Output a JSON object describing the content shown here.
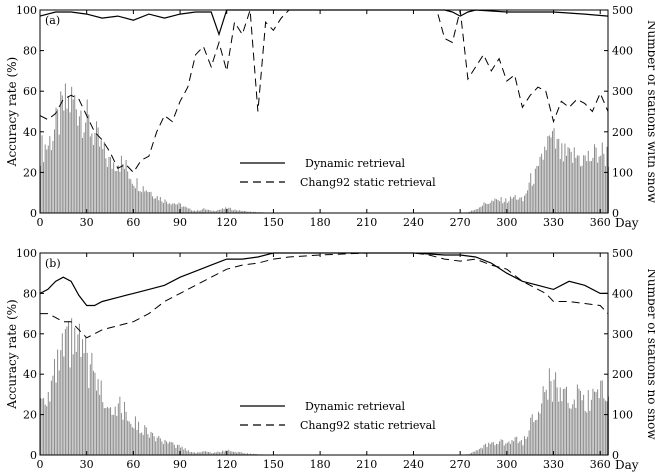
{
  "chart_data": [
    {
      "type": "line",
      "panel_label": "(a)",
      "xlabel": "Day",
      "ylabel": "Accuracy rate (%)",
      "y2label": "Number of stations with snow",
      "xlim": [
        0,
        365
      ],
      "ylim": [
        0,
        100
      ],
      "y2lim": [
        0,
        500
      ],
      "xticks": [
        0,
        30,
        60,
        90,
        120,
        150,
        180,
        210,
        240,
        270,
        300,
        330,
        360
      ],
      "yticks": [
        0,
        20,
        40,
        60,
        80,
        100
      ],
      "y2ticks": [
        0,
        100,
        200,
        300,
        400,
        500
      ],
      "legend_position": "center",
      "series": [
        {
          "name": "Dynamic retrieval",
          "style": "solid",
          "x": [
            0,
            10,
            20,
            30,
            40,
            50,
            60,
            70,
            80,
            90,
            100,
            110,
            115,
            120,
            130,
            140,
            150,
            160,
            170,
            180,
            210,
            240,
            260,
            265,
            270,
            275,
            280,
            300,
            330,
            350,
            365
          ],
          "y": [
            97,
            99,
            99,
            98,
            96,
            97,
            95,
            98,
            96,
            98,
            99,
            99,
            88,
            100,
            100,
            100,
            100,
            100,
            100,
            100,
            100,
            100,
            100,
            99,
            97,
            99,
            100,
            99,
            99,
            98,
            97
          ]
        },
        {
          "name": "Chang92 static retrieval",
          "style": "dashed",
          "x": [
            0,
            5,
            10,
            15,
            20,
            25,
            30,
            35,
            40,
            45,
            50,
            55,
            60,
            65,
            70,
            75,
            80,
            85,
            90,
            95,
            100,
            105,
            110,
            115,
            120,
            125,
            130,
            135,
            140,
            145,
            150,
            155,
            160,
            255,
            260,
            265,
            270,
            275,
            280,
            285,
            290,
            295,
            300,
            305,
            310,
            315,
            320,
            325,
            330,
            335,
            340,
            345,
            350,
            355,
            360,
            365
          ],
          "y": [
            48,
            46,
            49,
            56,
            58,
            56,
            48,
            40,
            36,
            30,
            22,
            24,
            20,
            26,
            28,
            40,
            48,
            45,
            55,
            62,
            78,
            82,
            72,
            84,
            70,
            94,
            88,
            100,
            50,
            94,
            90,
            96,
            100,
            100,
            86,
            84,
            100,
            66,
            72,
            78,
            70,
            76,
            65,
            68,
            52,
            58,
            62,
            60,
            45,
            55,
            52,
            56,
            54,
            50,
            59,
            50
          ]
        }
      ],
      "bars": {
        "name": "Number of stations with snow",
        "axis": "right",
        "x": [
          0,
          5,
          10,
          15,
          20,
          25,
          30,
          35,
          40,
          45,
          50,
          55,
          60,
          65,
          70,
          75,
          80,
          85,
          90,
          95,
          100,
          105,
          110,
          115,
          120,
          125,
          130,
          135,
          140,
          145,
          150,
          155,
          160,
          270,
          275,
          280,
          285,
          290,
          295,
          300,
          305,
          310,
          315,
          320,
          325,
          330,
          335,
          340,
          345,
          350,
          355,
          360,
          365
        ],
        "values": [
          155,
          170,
          210,
          260,
          275,
          260,
          225,
          190,
          150,
          120,
          130,
          110,
          80,
          65,
          55,
          40,
          30,
          25,
          20,
          10,
          5,
          10,
          5,
          8,
          12,
          8,
          5,
          3,
          2,
          1,
          0,
          0,
          0,
          0,
          2,
          10,
          22,
          28,
          32,
          30,
          40,
          30,
          80,
          100,
          170,
          175,
          140,
          135,
          140,
          130,
          140,
          150,
          140
        ]
      }
    },
    {
      "type": "line",
      "panel_label": "(b)",
      "xlabel": "Day",
      "ylabel": "Accuracy rate (%)",
      "y2label": "Number of stations no snow",
      "xlim": [
        0,
        365
      ],
      "ylim": [
        0,
        100
      ],
      "y2lim": [
        0,
        500
      ],
      "xticks": [
        0,
        30,
        60,
        90,
        120,
        150,
        180,
        210,
        240,
        270,
        300,
        330,
        360
      ],
      "yticks": [
        0,
        20,
        40,
        60,
        80,
        100
      ],
      "y2ticks": [
        0,
        100,
        200,
        300,
        400,
        500
      ],
      "legend_position": "center",
      "series": [
        {
          "name": "Dynamic retrieval",
          "style": "solid",
          "x": [
            0,
            5,
            10,
            15,
            20,
            25,
            30,
            35,
            40,
            50,
            60,
            70,
            80,
            90,
            100,
            110,
            120,
            130,
            140,
            150,
            160,
            180,
            210,
            240,
            260,
            270,
            280,
            290,
            300,
            310,
            320,
            330,
            340,
            350,
            360,
            365
          ],
          "y": [
            80,
            82,
            86,
            88,
            86,
            79,
            74,
            74,
            76,
            78,
            80,
            82,
            84,
            88,
            91,
            94,
            97,
            97,
            98,
            100,
            100,
            100,
            100,
            100,
            99,
            99,
            98,
            95,
            90,
            86,
            84,
            82,
            86,
            84,
            80,
            80
          ]
        },
        {
          "name": "Chang92 static retrieval",
          "style": "dashed",
          "x": [
            0,
            5,
            10,
            15,
            20,
            25,
            30,
            35,
            40,
            50,
            60,
            70,
            80,
            90,
            100,
            110,
            120,
            130,
            140,
            150,
            160,
            180,
            210,
            240,
            250,
            260,
            270,
            280,
            290,
            300,
            310,
            320,
            325,
            330,
            340,
            350,
            360,
            365
          ],
          "y": [
            70,
            70,
            68,
            66,
            66,
            62,
            58,
            60,
            62,
            64,
            66,
            70,
            76,
            80,
            84,
            88,
            92,
            94,
            95,
            97,
            98,
            99,
            100,
            100,
            99,
            97,
            96,
            97,
            94,
            92,
            86,
            82,
            80,
            76,
            76,
            75,
            74,
            70
          ]
        }
      ],
      "bars": {
        "name": "Number of stations no snow",
        "axis": "right",
        "x": [
          0,
          5,
          10,
          15,
          20,
          25,
          30,
          35,
          40,
          45,
          50,
          55,
          60,
          65,
          70,
          75,
          80,
          85,
          90,
          95,
          100,
          105,
          110,
          115,
          120,
          125,
          130,
          135,
          140,
          145,
          150,
          155,
          160,
          270,
          275,
          280,
          285,
          290,
          295,
          300,
          305,
          310,
          315,
          320,
          325,
          330,
          335,
          340,
          345,
          350,
          355,
          360,
          365
        ],
        "values": [
          140,
          155,
          200,
          255,
          275,
          265,
          225,
          190,
          150,
          125,
          120,
          105,
          80,
          65,
          55,
          40,
          30,
          25,
          20,
          10,
          5,
          10,
          5,
          8,
          12,
          8,
          5,
          3,
          2,
          1,
          0,
          0,
          0,
          0,
          2,
          10,
          22,
          28,
          32,
          30,
          40,
          30,
          80,
          100,
          170,
          175,
          140,
          135,
          140,
          130,
          140,
          150,
          140
        ]
      }
    }
  ]
}
